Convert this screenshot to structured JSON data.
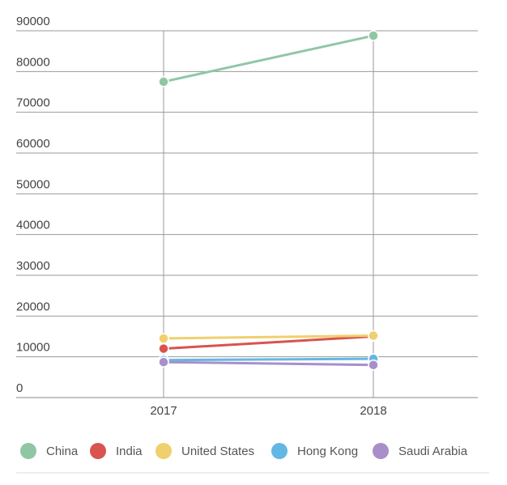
{
  "chart_data": {
    "type": "line",
    "title": "",
    "xlabel": "",
    "ylabel": "",
    "x": [
      "2017",
      "2018"
    ],
    "ylim": [
      0,
      90000
    ],
    "yticks": [
      "0",
      "10000",
      "20000",
      "30000",
      "40000",
      "50000",
      "60000",
      "70000",
      "80000",
      "90000"
    ],
    "grid": true,
    "legend_position": "bottom",
    "series": [
      {
        "name": "China",
        "color": "#8fc7a5",
        "values": [
          77500,
          88800
        ]
      },
      {
        "name": "India",
        "color": "#d9534f",
        "values": [
          12000,
          15000
        ]
      },
      {
        "name": "United States",
        "color": "#f0cf6e",
        "values": [
          14500,
          15200
        ]
      },
      {
        "name": "Hong Kong",
        "color": "#63b8e3",
        "values": [
          9200,
          9500
        ]
      },
      {
        "name": "Saudi Arabia",
        "color": "#a98fc9",
        "values": [
          8700,
          8000
        ]
      }
    ]
  }
}
